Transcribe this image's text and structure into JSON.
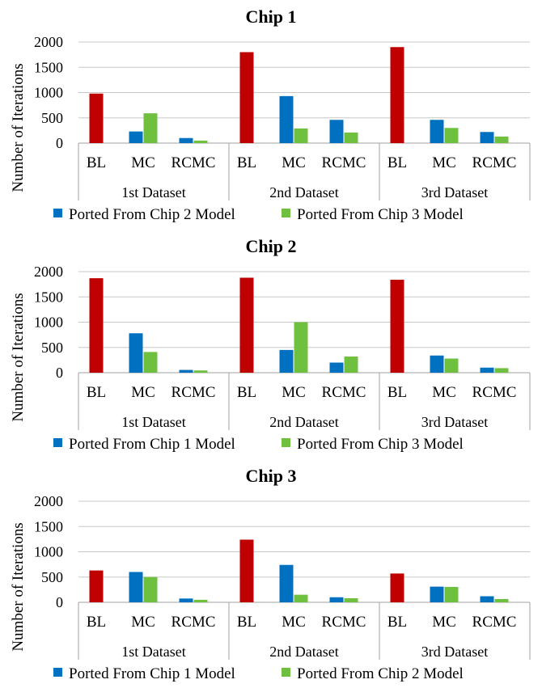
{
  "chart_data": [
    {
      "type": "bar",
      "title": "Chip 1",
      "ylabel": "Number of Iterations",
      "ylim": [
        0,
        2000
      ],
      "yticks": [
        "0",
        "500",
        "1000",
        "1500",
        "2000"
      ],
      "groups": [
        "1st Dataset",
        "2nd Dataset",
        "3rd Dataset"
      ],
      "categories": [
        "BL",
        "MC",
        "RCMC"
      ],
      "legend": [
        "Ported From Chip 2 Model",
        "Ported From Chip 3 Model"
      ],
      "series": [
        {
          "values": [
            [
              980,
              null,
              null
            ],
            [
              1800,
              null,
              null
            ],
            [
              1900,
              null,
              null
            ]
          ],
          "color": "#c00000"
        },
        {
          "name": "Ported From Chip 2 Model",
          "values": [
            [
              null,
              230,
              100
            ],
            [
              null,
              930,
              460
            ],
            [
              null,
              460,
              220
            ]
          ],
          "color": "#0070c0"
        },
        {
          "name": "Ported From Chip 3 Model",
          "values": [
            [
              null,
              590,
              50
            ],
            [
              null,
              290,
              210
            ],
            [
              null,
              300,
              130
            ]
          ],
          "color": "#70c040"
        }
      ]
    },
    {
      "type": "bar",
      "title": "Chip 2",
      "ylabel": "Number of Iterations",
      "ylim": [
        0,
        2000
      ],
      "yticks": [
        "0",
        "500",
        "1000",
        "1500",
        "2000"
      ],
      "groups": [
        "1st Dataset",
        "2nd Dataset",
        "3rd Dataset"
      ],
      "categories": [
        "BL",
        "MC",
        "RCMC"
      ],
      "legend": [
        "Ported From Chip 1 Model",
        "Ported From Chip 3 Model"
      ],
      "series": [
        {
          "values": [
            [
              1870,
              null,
              null
            ],
            [
              1880,
              null,
              null
            ],
            [
              1840,
              null,
              null
            ]
          ],
          "color": "#c00000"
        },
        {
          "name": "Ported From Chip 1 Model",
          "values": [
            [
              null,
              780,
              55
            ],
            [
              null,
              450,
              200
            ],
            [
              null,
              340,
              100
            ]
          ],
          "color": "#0070c0"
        },
        {
          "name": "Ported From Chip 3 Model",
          "values": [
            [
              null,
              410,
              45
            ],
            [
              null,
              1000,
              320
            ],
            [
              null,
              280,
              90
            ]
          ],
          "color": "#70c040"
        }
      ]
    },
    {
      "type": "bar",
      "title": "Chip 3",
      "ylabel": "Number of Iterations",
      "ylim": [
        0,
        2000
      ],
      "yticks": [
        "0",
        "500",
        "1000",
        "1500",
        "2000"
      ],
      "groups": [
        "1st Dataset",
        "2nd Dataset",
        "3rd Dataset"
      ],
      "categories": [
        "BL",
        "MC",
        "RCMC"
      ],
      "legend": [
        "Ported From Chip 1 Model",
        "Ported From Chip 2 Model"
      ],
      "series": [
        {
          "values": [
            [
              630,
              null,
              null
            ],
            [
              1240,
              null,
              null
            ],
            [
              570,
              null,
              null
            ]
          ],
          "color": "#c00000"
        },
        {
          "name": "Ported From Chip 1 Model",
          "values": [
            [
              null,
              600,
              75
            ],
            [
              null,
              740,
              100
            ],
            [
              null,
              310,
              120
            ]
          ],
          "color": "#0070c0"
        },
        {
          "name": "Ported From Chip 2 Model",
          "values": [
            [
              null,
              500,
              50
            ],
            [
              null,
              150,
              80
            ],
            [
              null,
              305,
              65
            ]
          ],
          "color": "#70c040"
        }
      ]
    }
  ]
}
